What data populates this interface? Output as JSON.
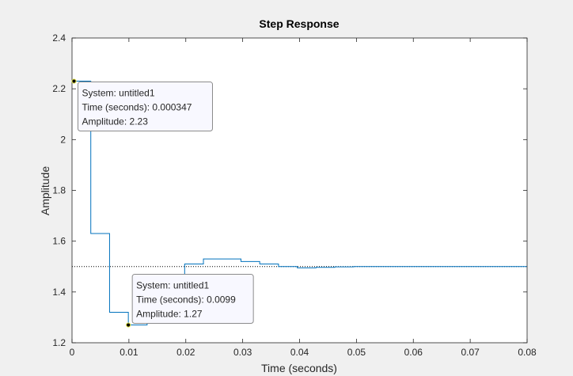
{
  "chart_data": {
    "type": "line",
    "title": "Step Response",
    "xlabel": "Time (seconds)",
    "ylabel": "Amplitude",
    "xlim": [
      0,
      0.08
    ],
    "ylim": [
      1.2,
      2.4
    ],
    "xticks": [
      0,
      0.01,
      0.02,
      0.03,
      0.04,
      0.05,
      0.06,
      0.07,
      0.08
    ],
    "xtick_labels": [
      "0",
      "0.01",
      "0.02",
      "0.03",
      "0.04",
      "0.05",
      "0.06",
      "0.07",
      "0.08"
    ],
    "yticks": [
      1.2,
      1.4,
      1.6,
      1.8,
      2,
      2.2,
      2.4
    ],
    "ytick_labels": [
      "1.2",
      "1.4",
      "1.6",
      "1.8",
      "2",
      "2.2",
      "2.4"
    ],
    "grid": false,
    "line_color": "#0072bd",
    "reference_line": {
      "value": 1.5,
      "style": "dotted",
      "color": "#000000"
    },
    "series": [
      {
        "style": "stairs",
        "x": [
          0,
          0.0033,
          0.0066,
          0.0099,
          0.0132,
          0.0165,
          0.0198,
          0.0231,
          0.0264,
          0.0297,
          0.033,
          0.0363,
          0.0396,
          0.0429,
          0.0462,
          0.0495,
          0.08
        ],
        "y": [
          2.23,
          1.63,
          1.32,
          1.27,
          1.38,
          1.43,
          1.51,
          1.53,
          1.53,
          1.52,
          1.51,
          1.5,
          1.495,
          1.497,
          1.499,
          1.5,
          1.5
        ]
      }
    ],
    "datatips": [
      {
        "x": 0.000347,
        "y": 2.23,
        "lines": [
          "System: untitled1",
          "Time (seconds): 0.000347",
          "Amplitude: 2.23"
        ]
      },
      {
        "x": 0.0099,
        "y": 1.27,
        "lines": [
          "System: untitled1",
          "Time (seconds): 0.0099",
          "Amplitude: 1.27"
        ]
      }
    ]
  }
}
